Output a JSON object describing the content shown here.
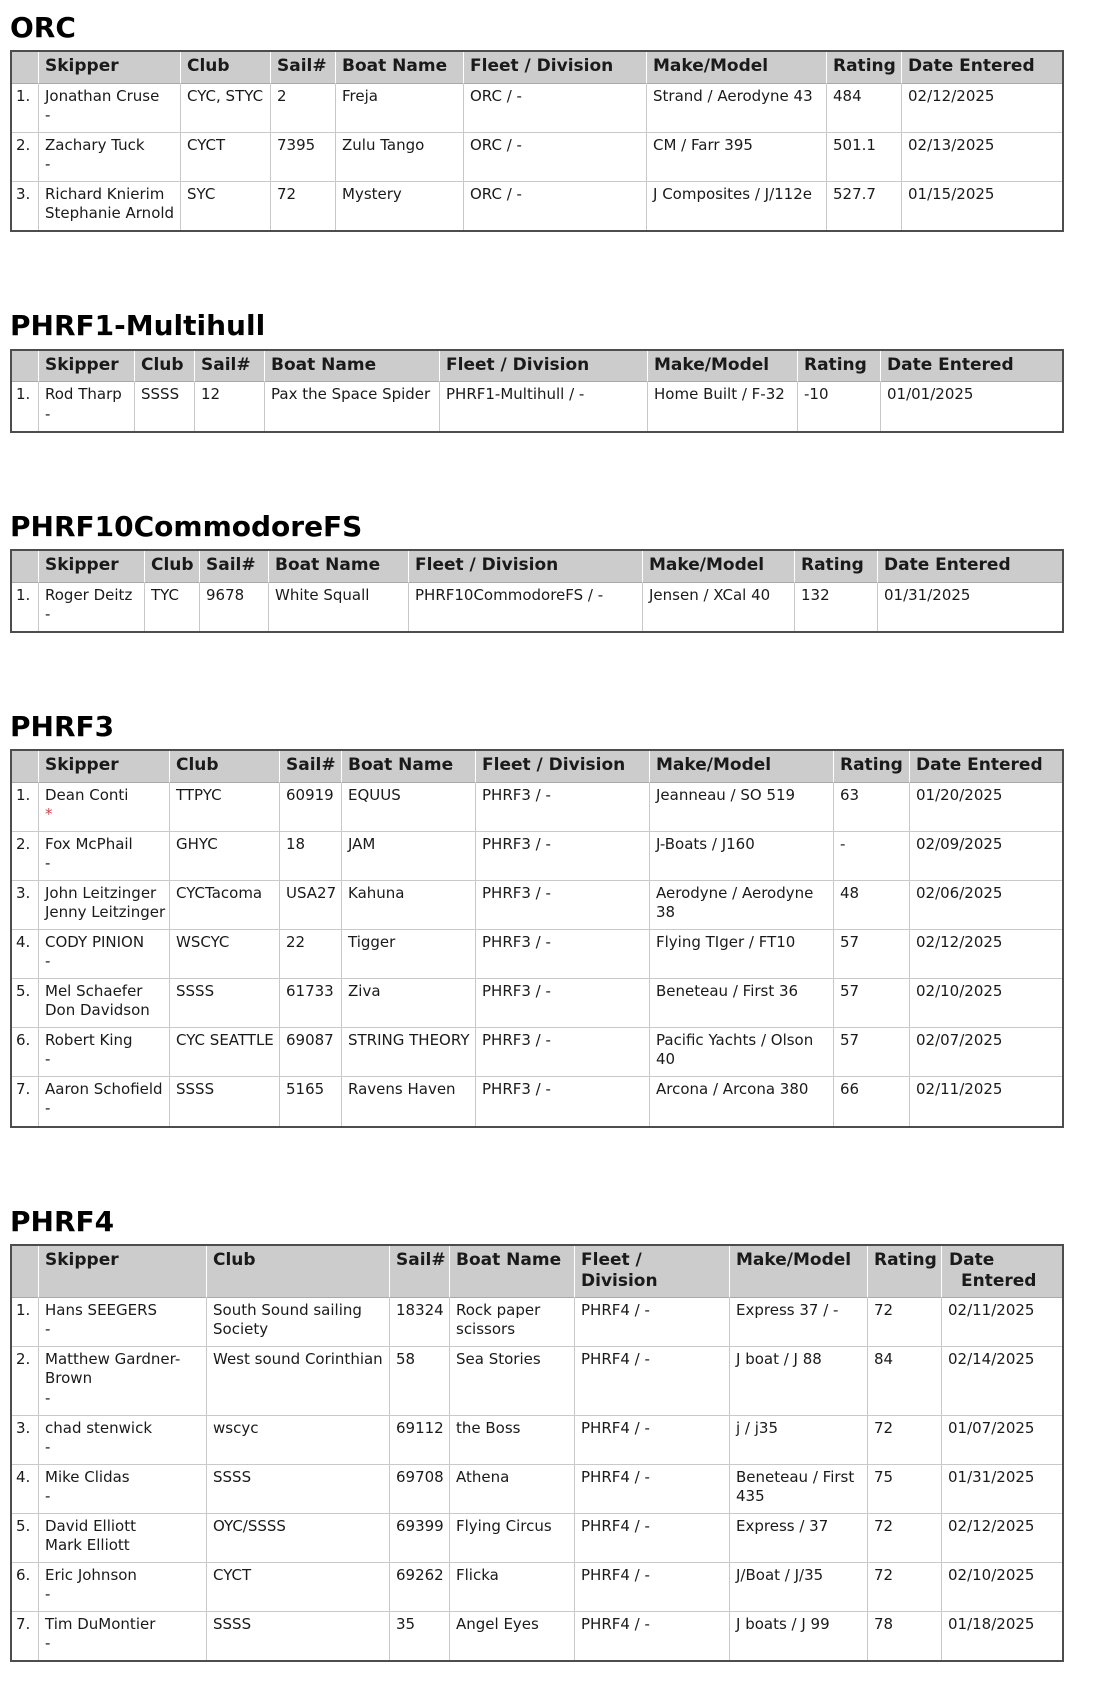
{
  "colors": {
    "header_bg": "#cccccc",
    "outer_border": "#4d4d4d",
    "grid_border": "#c9c9c9",
    "asterisk_red": "#cc4444"
  },
  "headers": [
    "Skipper",
    "Club",
    "Sail#",
    "Boat Name",
    "Fleet / Division",
    "Make/Model",
    "Rating",
    "Date Entered"
  ],
  "sections": [
    {
      "id": "orc",
      "title": "ORC",
      "rows": [
        {
          "num": "1.",
          "skipper_lines": [
            "Jonathan Cruse",
            "-"
          ],
          "star": false,
          "club": "CYC, STYC",
          "sail": "2",
          "boat": "Freja",
          "fleet": "ORC / -",
          "make": "Strand / Aerodyne 43",
          "rating": "484",
          "date": "02/12/2025"
        },
        {
          "num": "2.",
          "skipper_lines": [
            "Zachary Tuck",
            "-"
          ],
          "star": false,
          "club": "CYCT",
          "sail": "7395",
          "boat": "Zulu Tango",
          "fleet": "ORC / -",
          "make": "CM / Farr 395",
          "rating": "501.1",
          "date": "02/13/2025"
        },
        {
          "num": "3.",
          "skipper_lines": [
            "Richard Knierim",
            "Stephanie Arnold"
          ],
          "star": false,
          "club": "SYC",
          "sail": "72",
          "boat": "Mystery",
          "fleet": "ORC / -",
          "make": "J Composites / J/112e",
          "rating": "527.7",
          "date": "01/15/2025"
        }
      ]
    },
    {
      "id": "phrf1",
      "title": "PHRF1-Multihull",
      "rows": [
        {
          "num": "1.",
          "skipper_lines": [
            "Rod Tharp",
            "-"
          ],
          "star": false,
          "club": "SSSS",
          "sail": "12",
          "boat": "Pax the Space Spider",
          "fleet": "PHRF1-Multihull / -",
          "make": "Home Built / F-32",
          "rating": "-10",
          "date": "01/01/2025"
        }
      ]
    },
    {
      "id": "phrf10",
      "title": "PHRF10CommodoreFS",
      "rows": [
        {
          "num": "1.",
          "skipper_lines": [
            "Roger Deitz",
            "-"
          ],
          "star": false,
          "club": "TYC",
          "sail": "9678",
          "boat": "White Squall",
          "fleet": "PHRF10CommodoreFS / -",
          "make": "Jensen / XCal 40",
          "rating": "132",
          "date": "01/31/2025"
        }
      ]
    },
    {
      "id": "phrf3",
      "title": "PHRF3",
      "rows": [
        {
          "num": "1.",
          "skipper_lines": [
            "Dean Conti",
            "*"
          ],
          "star": true,
          "club": "TTPYC",
          "sail": "60919",
          "boat": "EQUUS",
          "fleet": "PHRF3 / -",
          "make": "Jeanneau / SO 519",
          "rating": "63",
          "date": "01/20/2025"
        },
        {
          "num": "2.",
          "skipper_lines": [
            "Fox McPhail",
            "-"
          ],
          "star": false,
          "club": "GHYC",
          "sail": "18",
          "boat": "JAM",
          "fleet": "PHRF3 / -",
          "make": "J-Boats / J160",
          "rating": "-",
          "date": "02/09/2025"
        },
        {
          "num": "3.",
          "skipper_lines": [
            "John Leitzinger",
            "Jenny Leitzinger"
          ],
          "star": false,
          "club": "CYCTacoma",
          "sail": "USA27",
          "boat": "Kahuna",
          "fleet": "PHRF3 / -",
          "make": "Aerodyne / Aerodyne 38",
          "rating": "48",
          "date": "02/06/2025"
        },
        {
          "num": "4.",
          "skipper_lines": [
            "CODY PINION",
            "-"
          ],
          "star": false,
          "club": "WSCYC",
          "sail": "22",
          "boat": "Tigger",
          "fleet": "PHRF3 / -",
          "make": "Flying TIger / FT10",
          "rating": "57",
          "date": "02/12/2025"
        },
        {
          "num": "5.",
          "skipper_lines": [
            "Mel Schaefer",
            "Don Davidson"
          ],
          "star": false,
          "club": "SSSS",
          "sail": "61733",
          "boat": "Ziva",
          "fleet": "PHRF3 / -",
          "make": "Beneteau / First 36",
          "rating": "57",
          "date": "02/10/2025"
        },
        {
          "num": "6.",
          "skipper_lines": [
            "Robert King",
            "-"
          ],
          "star": false,
          "club": "CYC SEATTLE",
          "sail": "69087",
          "boat": "STRING THEORY",
          "fleet": "PHRF3 / -",
          "make": "Pacific Yachts / Olson 40",
          "rating": "57",
          "date": "02/07/2025"
        },
        {
          "num": "7.",
          "skipper_lines": [
            "Aaron Schofield",
            "-"
          ],
          "star": false,
          "club": "SSSS",
          "sail": "5165",
          "boat": "Ravens Haven",
          "fleet": "PHRF3 / -",
          "make": "Arcona / Arcona 380",
          "rating": "66",
          "date": "02/11/2025"
        }
      ]
    },
    {
      "id": "phrf4",
      "title": "PHRF4",
      "rows": [
        {
          "num": "1.",
          "skipper_lines": [
            "Hans SEEGERS",
            "-"
          ],
          "star": false,
          "club": "South Sound sailing Society",
          "sail": "18324",
          "boat": "Rock paper scissors",
          "fleet": "PHRF4 / -",
          "make": "Express 37 / -",
          "rating": "72",
          "date": "02/11/2025"
        },
        {
          "num": "2.",
          "skipper_lines": [
            "Matthew Gardner-Brown",
            "-"
          ],
          "star": false,
          "club": "West sound Corinthian",
          "sail": "58",
          "boat": "Sea Stories",
          "fleet": "PHRF4 / -",
          "make": "J boat / J 88",
          "rating": "84",
          "date": "02/14/2025"
        },
        {
          "num": "3.",
          "skipper_lines": [
            "chad stenwick",
            "-"
          ],
          "star": false,
          "club": "wscyc",
          "sail": "69112",
          "boat": "the Boss",
          "fleet": "PHRF4 / -",
          "make": "j / j35",
          "rating": "72",
          "date": "01/07/2025"
        },
        {
          "num": "4.",
          "skipper_lines": [
            "Mike Clidas",
            "-"
          ],
          "star": false,
          "club": "SSSS",
          "sail": "69708",
          "boat": "Athena",
          "fleet": "PHRF4 / -",
          "make": "Beneteau / First 435",
          "rating": "75",
          "date": "01/31/2025"
        },
        {
          "num": "5.",
          "skipper_lines": [
            "David Elliott",
            "Mark Elliott"
          ],
          "star": false,
          "club": "OYC/SSSS",
          "sail": "69399",
          "boat": "Flying Circus",
          "fleet": "PHRF4 / -",
          "make": "Express / 37",
          "rating": "72",
          "date": "02/12/2025"
        },
        {
          "num": "6.",
          "skipper_lines": [
            "Eric Johnson",
            "-"
          ],
          "star": false,
          "club": "CYCT",
          "sail": "69262",
          "boat": "Flicka",
          "fleet": "PHRF4 / -",
          "make": "J/Boat / J/35",
          "rating": "72",
          "date": "02/10/2025"
        },
        {
          "num": "7.",
          "skipper_lines": [
            "Tim DuMontier",
            "-"
          ],
          "star": false,
          "club": "SSSS",
          "sail": "35",
          "boat": "Angel Eyes",
          "fleet": "PHRF4 / -",
          "make": "J boats / J 99",
          "rating": "78",
          "date": "01/18/2025"
        }
      ]
    }
  ]
}
